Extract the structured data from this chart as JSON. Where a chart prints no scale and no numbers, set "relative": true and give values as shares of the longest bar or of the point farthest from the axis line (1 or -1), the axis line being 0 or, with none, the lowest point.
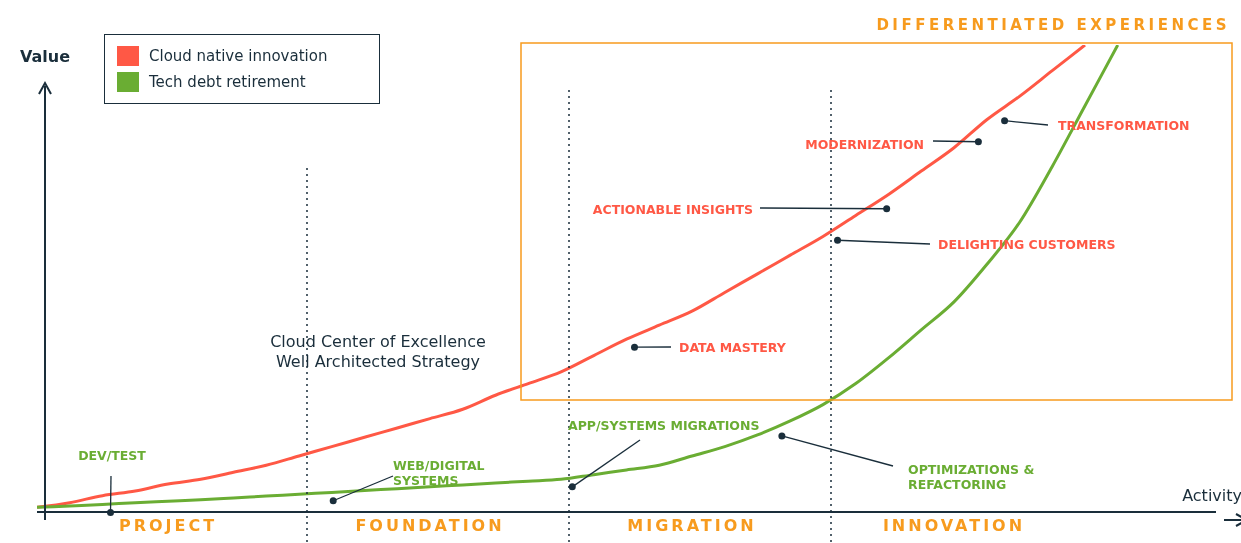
{
  "chart_data": {
    "type": "line",
    "relative": true,
    "xlabel": "Activity",
    "ylabel": "Value",
    "legend": "top left",
    "categories": [
      null,
      null,
      null,
      null,
      "PROJECT",
      null,
      null,
      null,
      null,
      null,
      null,
      null,
      "FOUNDATION",
      null,
      null,
      null,
      null,
      null,
      null,
      null,
      "MIGRATION",
      null,
      null,
      null,
      null,
      null,
      null,
      null,
      "INNOVATION",
      null,
      null,
      null,
      null,
      null,
      null,
      null,
      null
    ],
    "series": [
      {
        "name": "Cloud native innovation",
        "color": "#ff5845",
        "values": [
          0.01,
          0.02,
          0.035,
          0.045,
          0.06,
          0.07,
          0.085,
          0.1,
          0.12,
          0.14,
          0.16,
          0.18,
          0.2,
          0.22,
          0.25,
          0.275,
          0.3,
          0.335,
          0.37,
          0.4,
          0.43,
          0.47,
          0.51,
          0.55,
          0.59,
          0.635,
          0.68,
          0.73,
          0.78,
          0.84,
          0.89,
          0.945,
          1.0,
          null,
          null,
          null,
          null
        ]
      },
      {
        "name": "Tech debt retirement",
        "color": "#6aad33",
        "values": [
          0.01,
          0.013,
          0.016,
          0.02,
          0.023,
          0.026,
          0.03,
          0.034,
          0.038,
          0.042,
          0.046,
          0.05,
          0.054,
          0.058,
          0.062,
          0.066,
          0.07,
          0.08,
          0.09,
          0.1,
          0.12,
          0.14,
          0.165,
          0.195,
          0.23,
          0.275,
          0.33,
          0.39,
          0.45,
          0.53,
          0.62,
          0.74,
          0.87,
          1.0,
          null,
          null,
          null
        ]
      }
    ],
    "annotations": [
      "DIFFERENTIATED EXPERIENCES",
      "Cloud Center of Excellence",
      "Well Architected Strategy",
      "DEV/TEST",
      "WEB/DIGITAL SYSTEMS",
      "APP/SYSTEMS MIGRATIONS",
      "OPTIMIZATIONS & REFACTORING",
      "DATA MASTERY",
      "DELIGHTING CUSTOMERS",
      "ACTIONABLE INSIGHTS",
      "MODERNIZATION",
      "TRANSFORMATION"
    ]
  }
}
